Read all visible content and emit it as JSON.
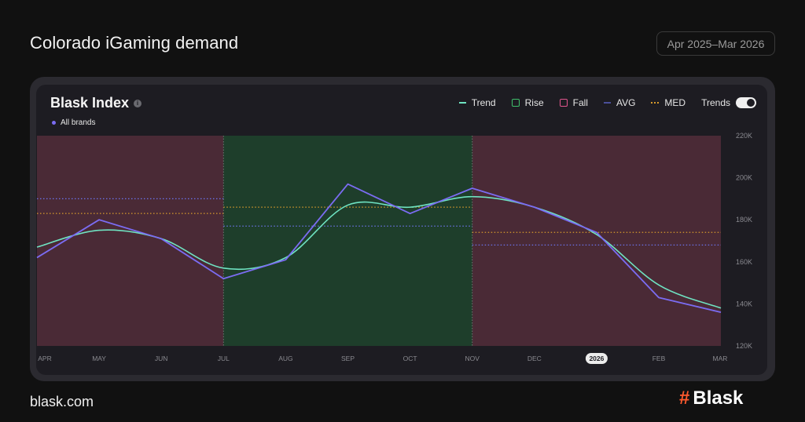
{
  "header": {
    "title": "Colorado iGaming demand",
    "date_range": "Apr 2025–Mar 2026"
  },
  "card": {
    "title": "Blask Index",
    "info_icon": "info-icon",
    "series_label": "All brands"
  },
  "legend": {
    "trend": "Trend",
    "rise": "Rise",
    "fall": "Fall",
    "avg": "AVG",
    "med": "MED",
    "trends_toggle": "Trends"
  },
  "footer": {
    "url": "blask.com",
    "logo_mark": "#",
    "logo_text": "Blask"
  },
  "colors": {
    "index_line": "#7b6cf2",
    "trend_line": "#6fe3c2",
    "rise": "#1e3e2b",
    "fall": "#4a2a36",
    "avg": "#6b72ea",
    "med": "#d79a2c",
    "accent": "#ff5a2e"
  },
  "chart_data": {
    "type": "line",
    "x_labels": [
      "APR",
      "MAY",
      "JUN",
      "JUL",
      "AUG",
      "SEP",
      "OCT",
      "NOV",
      "DEC",
      "2026",
      "FEB",
      "MAR"
    ],
    "highlighted_x_label": "2026",
    "y_ticks": [
      "220K",
      "200K",
      "180K",
      "160K",
      "140K",
      "120K"
    ],
    "ylim": [
      120000,
      220000
    ],
    "series": [
      {
        "name": "All brands",
        "values": [
          162000,
          180000,
          171000,
          152000,
          161000,
          197000,
          183000,
          195000,
          186000,
          174000,
          143000,
          136000
        ]
      },
      {
        "name": "Trend",
        "values": [
          167000,
          175000,
          171000,
          157000,
          162000,
          187000,
          186000,
          191000,
          186000,
          173000,
          149000,
          138000
        ]
      }
    ],
    "regions": [
      {
        "type": "fall",
        "from": "APR",
        "to": "JUL",
        "avg": 190000,
        "med": 183000
      },
      {
        "type": "rise",
        "from": "JUL",
        "to": "NOV",
        "avg": 177000,
        "med": 186000
      },
      {
        "type": "fall",
        "from": "NOV",
        "to": "MAR",
        "avg": 168000,
        "med": 174000
      }
    ]
  }
}
